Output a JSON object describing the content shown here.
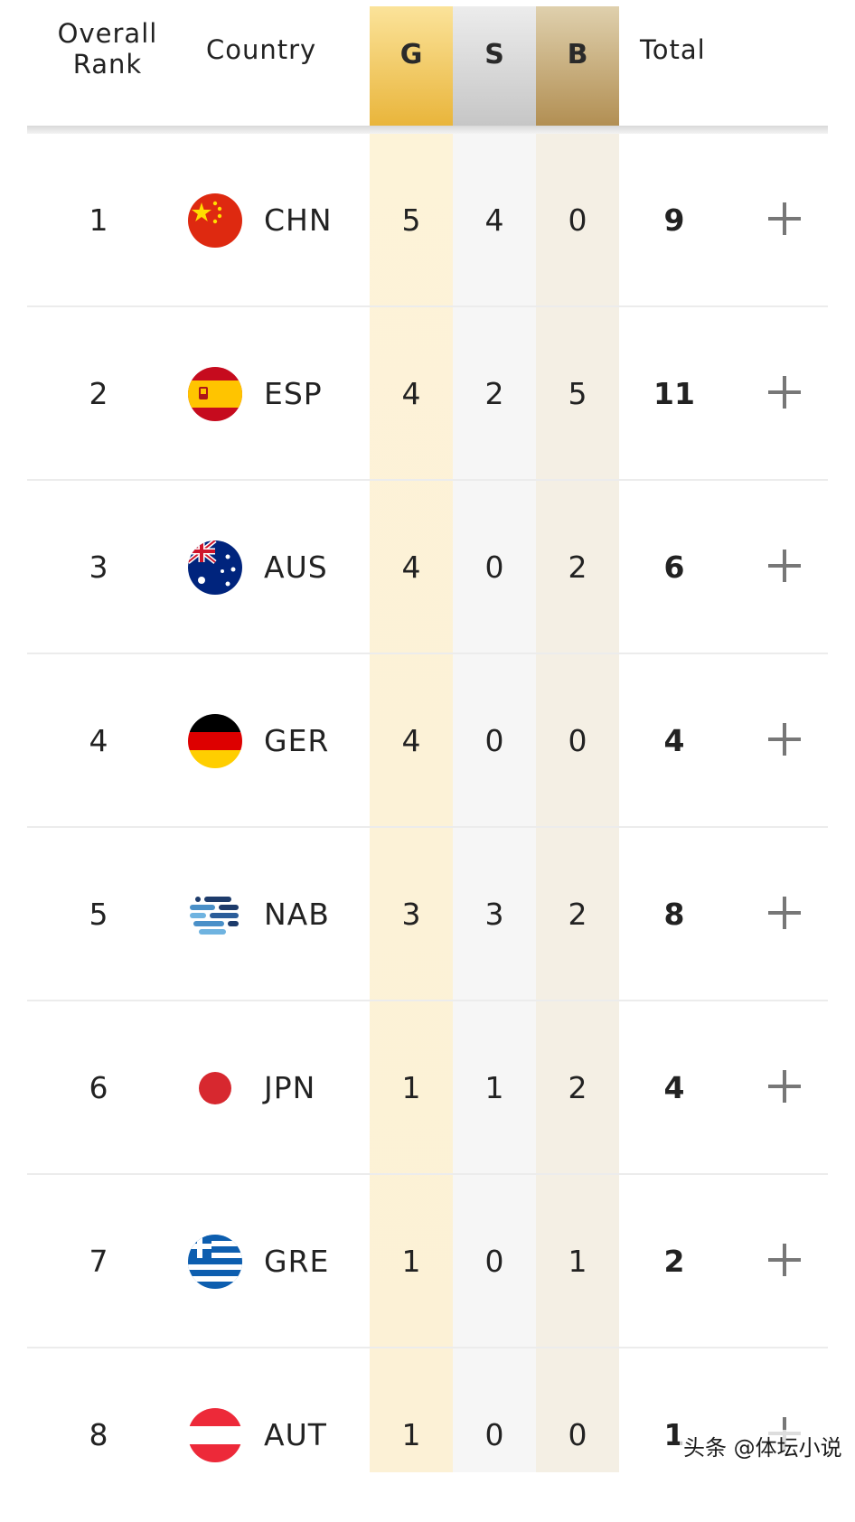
{
  "header": {
    "rank_line1": "Overall",
    "rank_line2": "Rank",
    "country": "Country",
    "gold": "G",
    "silver": "S",
    "bronze": "B",
    "total": "Total"
  },
  "colors": {
    "gold_header": "#e9b53b",
    "silver_header": "#c6c6c6",
    "bronze_header": "#b28f53",
    "expand_icon": "#777777"
  },
  "rows": [
    {
      "rank": "1",
      "code": "CHN",
      "gold": "5",
      "silver": "4",
      "bronze": "0",
      "total": "9",
      "flag_icon": "china-flag-icon",
      "expand_icon": "plus-icon"
    },
    {
      "rank": "2",
      "code": "ESP",
      "gold": "4",
      "silver": "2",
      "bronze": "5",
      "total": "11",
      "flag_icon": "spain-flag-icon",
      "expand_icon": "plus-icon"
    },
    {
      "rank": "3",
      "code": "AUS",
      "gold": "4",
      "silver": "0",
      "bronze": "2",
      "total": "6",
      "flag_icon": "australia-flag-icon",
      "expand_icon": "plus-icon"
    },
    {
      "rank": "4",
      "code": "GER",
      "gold": "4",
      "silver": "0",
      "bronze": "0",
      "total": "4",
      "flag_icon": "germany-flag-icon",
      "expand_icon": "plus-icon"
    },
    {
      "rank": "5",
      "code": "NAB",
      "gold": "3",
      "silver": "3",
      "bronze": "2",
      "total": "8",
      "flag_icon": "neutral-athletes-flag-icon",
      "expand_icon": "plus-icon"
    },
    {
      "rank": "6",
      "code": "JPN",
      "gold": "1",
      "silver": "1",
      "bronze": "2",
      "total": "4",
      "flag_icon": "japan-flag-icon",
      "expand_icon": "plus-icon"
    },
    {
      "rank": "7",
      "code": "GRE",
      "gold": "1",
      "silver": "0",
      "bronze": "1",
      "total": "2",
      "flag_icon": "greece-flag-icon",
      "expand_icon": "plus-icon"
    },
    {
      "rank": "8",
      "code": "AUT",
      "gold": "1",
      "silver": "0",
      "bronze": "0",
      "total": "1",
      "flag_icon": "austria-flag-icon",
      "expand_icon": "plus-icon"
    }
  ],
  "watermark": "头条 @体坛小说"
}
